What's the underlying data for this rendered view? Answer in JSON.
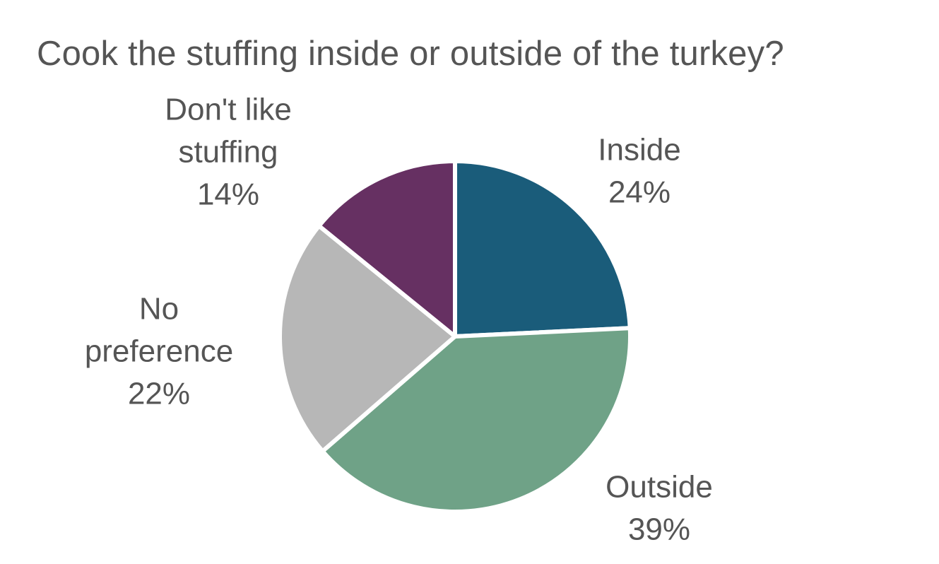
{
  "chart_data": {
    "type": "pie",
    "title": "Cook the stuffing inside or outside of the turkey?",
    "slices": [
      {
        "label": "Inside",
        "label_lines": [
          "Inside"
        ],
        "value": 24,
        "value_label": "24%",
        "color": "#1a5c7a"
      },
      {
        "label": "Outside",
        "label_lines": [
          "Outside"
        ],
        "value": 39,
        "value_label": "39%",
        "color": "#6fa287"
      },
      {
        "label": "No preference",
        "label_lines": [
          "No",
          "preference"
        ],
        "value": 22,
        "value_label": "22%",
        "color": "#b7b7b7"
      },
      {
        "label": "Don't like stuffing",
        "label_lines": [
          "Don't like",
          "stuffing"
        ],
        "value": 14,
        "value_label": "14%",
        "color": "#663062"
      }
    ],
    "start_angle_deg": 0,
    "direction": "clockwise",
    "legend": "none",
    "data_labels": "outside"
  }
}
